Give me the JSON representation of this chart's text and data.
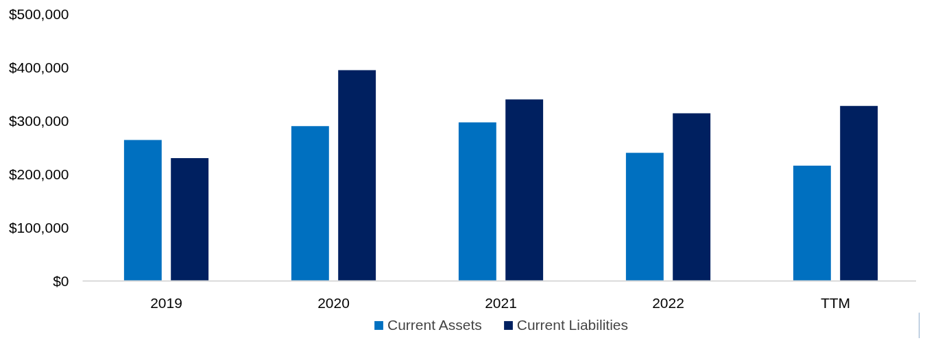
{
  "chart_data": {
    "type": "bar",
    "categories": [
      "2019",
      "2020",
      "2021",
      "2022",
      "TTM"
    ],
    "series": [
      {
        "name": "Current Assets",
        "color": "#0070c0",
        "values": [
          264000,
          290000,
          297000,
          240000,
          216000
        ]
      },
      {
        "name": "Current Liabilities",
        "color": "#002060",
        "values": [
          230000,
          395000,
          340000,
          314000,
          328000
        ]
      }
    ],
    "ylim": [
      0,
      500000
    ],
    "yticks": [
      {
        "value": 0,
        "label": "$0"
      },
      {
        "value": 100000,
        "label": "$100,000"
      },
      {
        "value": 200000,
        "label": "$200,000"
      },
      {
        "value": 300000,
        "label": "$300,000"
      },
      {
        "value": 400000,
        "label": "$400,000"
      },
      {
        "value": 500000,
        "label": "$500,000"
      }
    ],
    "grid": false,
    "legend": "bottom"
  }
}
